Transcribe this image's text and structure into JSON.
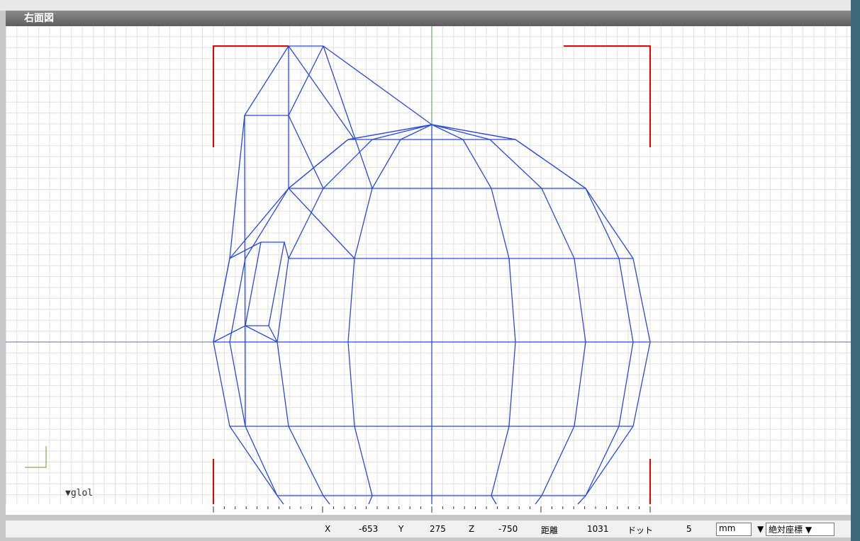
{
  "header": {
    "title": "右面図"
  },
  "viewport": {
    "object_label": "▼glol"
  },
  "status_bar": {
    "x_label": "X",
    "x_value": "-653",
    "y_label": "Y",
    "y_value": "275",
    "z_label": "Z",
    "z_value": "-750",
    "distance_label": "距離",
    "distance_value": "1031",
    "dot_label": "ドット",
    "dot_value": "5",
    "unit_select": "mm",
    "unit_arrow": "▼",
    "coord_select": "絶対座標 ▼"
  }
}
